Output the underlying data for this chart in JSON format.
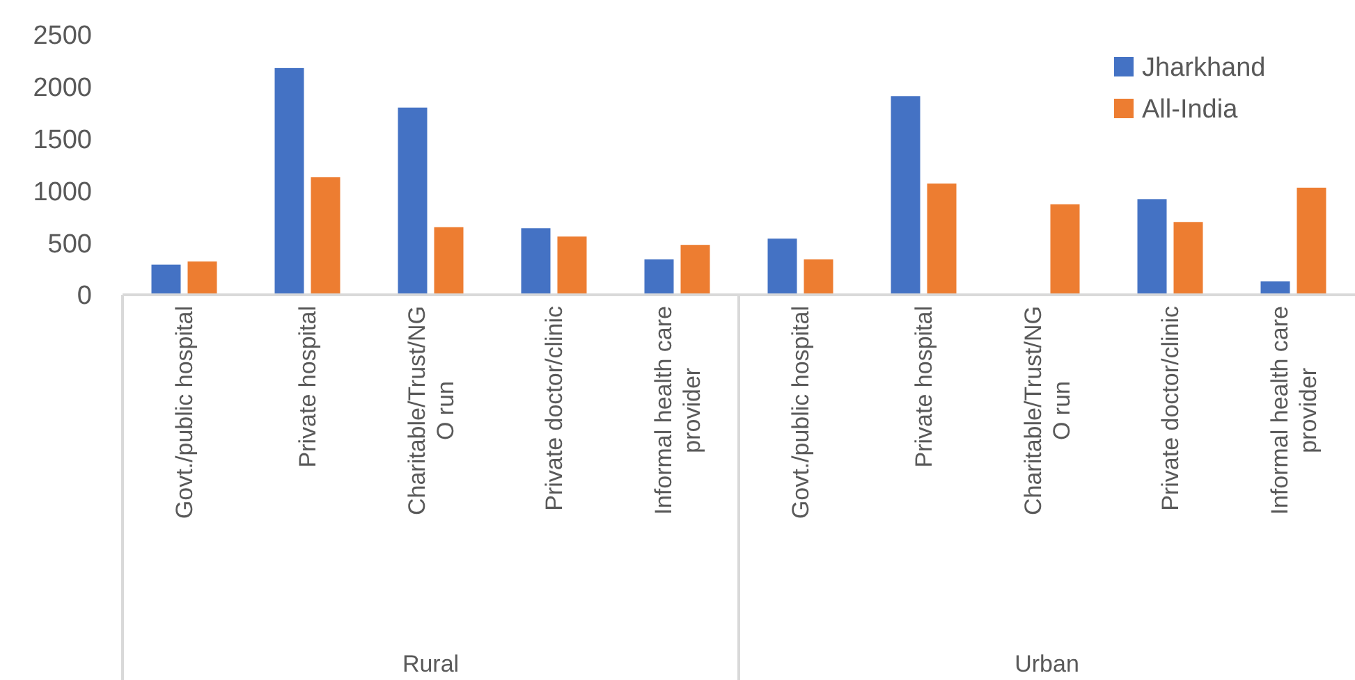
{
  "chart_data": {
    "type": "bar",
    "categories": [
      "Govt./public hospital",
      "Private hospital",
      "Charitable/Trust/NGO run",
      "Private doctor/clinic",
      "Informal health care provider",
      "Govt./public hospital",
      "Private hospital",
      "Charitable/Trust/NGO run",
      "Private doctor/clinic",
      "Informal health care provider"
    ],
    "series": [
      {
        "name": "Jharkhand",
        "color": "#4472c4",
        "values": [
          290,
          2180,
          1800,
          640,
          340,
          540,
          1910,
          0,
          920,
          130
        ]
      },
      {
        "name": "All-India",
        "color": "#ed7d31",
        "values": [
          320,
          1130,
          650,
          560,
          480,
          340,
          1070,
          870,
          700,
          1030
        ]
      }
    ],
    "ylim": [
      0,
      2500
    ],
    "yticks": [
      0,
      500,
      1000,
      1500,
      2000,
      2500
    ],
    "grid": false,
    "legend": "top right",
    "annotations": [
      "Rural",
      "Urban"
    ]
  }
}
